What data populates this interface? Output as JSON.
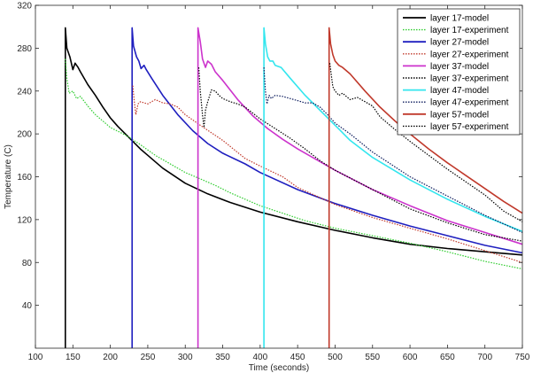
{
  "chart_data": {
    "type": "line",
    "title": "",
    "xlabel": "Time (seconds)",
    "ylabel": "Temperature (C)",
    "xlim": [
      100,
      750
    ],
    "ylim": [
      0,
      320
    ],
    "xticks": [
      100,
      150,
      200,
      250,
      300,
      350,
      400,
      450,
      500,
      550,
      600,
      650,
      700,
      750
    ],
    "yticks": [
      40,
      80,
      120,
      160,
      200,
      240,
      280,
      320
    ],
    "grid": false,
    "legend_position": "top-right",
    "series": [
      {
        "name": "layer 17-model",
        "color": "#000000",
        "style": "solid",
        "points": [
          [
            140,
            0
          ],
          [
            140,
            299
          ],
          [
            142,
            280
          ],
          [
            146,
            272
          ],
          [
            150,
            260
          ],
          [
            153,
            266
          ],
          [
            157,
            262
          ],
          [
            160,
            258
          ],
          [
            170,
            246
          ],
          [
            180,
            236
          ],
          [
            190,
            225
          ],
          [
            200,
            215
          ],
          [
            210,
            207
          ],
          [
            220,
            200
          ],
          [
            230,
            193
          ],
          [
            240,
            186
          ],
          [
            250,
            180
          ],
          [
            270,
            168
          ],
          [
            300,
            154
          ],
          [
            330,
            144
          ],
          [
            360,
            136
          ],
          [
            400,
            127
          ],
          [
            450,
            118
          ],
          [
            500,
            110
          ],
          [
            550,
            103
          ],
          [
            600,
            97
          ],
          [
            650,
            93
          ],
          [
            700,
            90
          ],
          [
            750,
            87
          ]
        ]
      },
      {
        "name": "layer 17-experiment",
        "color": "#2ecc2e",
        "style": "dotted",
        "points": [
          [
            140,
            270
          ],
          [
            142,
            252
          ],
          [
            145,
            238
          ],
          [
            150,
            240
          ],
          [
            155,
            233
          ],
          [
            160,
            235
          ],
          [
            170,
            226
          ],
          [
            180,
            218
          ],
          [
            190,
            212
          ],
          [
            200,
            206
          ],
          [
            220,
            199
          ],
          [
            240,
            190
          ],
          [
            260,
            180
          ],
          [
            280,
            172
          ],
          [
            300,
            164
          ],
          [
            320,
            158
          ],
          [
            340,
            152
          ],
          [
            360,
            145
          ],
          [
            380,
            139
          ],
          [
            400,
            133
          ],
          [
            430,
            126
          ],
          [
            460,
            119
          ],
          [
            500,
            112
          ],
          [
            550,
            105
          ],
          [
            600,
            98
          ],
          [
            650,
            90
          ],
          [
            700,
            81
          ],
          [
            750,
            74
          ]
        ]
      },
      {
        "name": "layer 27-model",
        "color": "#1f1fbf",
        "style": "solid",
        "points": [
          [
            229,
            0
          ],
          [
            229,
            299
          ],
          [
            231,
            282
          ],
          [
            235,
            272
          ],
          [
            238,
            268
          ],
          [
            241,
            261
          ],
          [
            245,
            264
          ],
          [
            248,
            260
          ],
          [
            255,
            252
          ],
          [
            270,
            236
          ],
          [
            290,
            218
          ],
          [
            310,
            203
          ],
          [
            330,
            191
          ],
          [
            350,
            182
          ],
          [
            380,
            172
          ],
          [
            400,
            164
          ],
          [
            450,
            148
          ],
          [
            500,
            135
          ],
          [
            550,
            124
          ],
          [
            600,
            114
          ],
          [
            650,
            105
          ],
          [
            700,
            96
          ],
          [
            750,
            89
          ]
        ]
      },
      {
        "name": "layer 27-experiment",
        "color": "#c0392b",
        "style": "dotted",
        "points": [
          [
            230,
            245
          ],
          [
            232,
            230
          ],
          [
            234,
            218
          ],
          [
            237,
            228
          ],
          [
            240,
            230
          ],
          [
            250,
            228
          ],
          [
            260,
            232
          ],
          [
            270,
            229
          ],
          [
            280,
            228
          ],
          [
            290,
            225
          ],
          [
            300,
            218
          ],
          [
            320,
            208
          ],
          [
            350,
            194
          ],
          [
            380,
            177
          ],
          [
            400,
            170
          ],
          [
            430,
            160
          ],
          [
            450,
            150
          ],
          [
            500,
            134
          ],
          [
            550,
            122
          ],
          [
            600,
            112
          ],
          [
            650,
            102
          ],
          [
            700,
            91
          ],
          [
            750,
            80
          ]
        ]
      },
      {
        "name": "layer 37-model",
        "color": "#cc33cc",
        "style": "solid",
        "points": [
          [
            317,
            0
          ],
          [
            317,
            299
          ],
          [
            320,
            286
          ],
          [
            323,
            270
          ],
          [
            327,
            262
          ],
          [
            330,
            268
          ],
          [
            335,
            265
          ],
          [
            340,
            258
          ],
          [
            350,
            250
          ],
          [
            370,
            232
          ],
          [
            390,
            217
          ],
          [
            410,
            205
          ],
          [
            430,
            195
          ],
          [
            450,
            186
          ],
          [
            500,
            166
          ],
          [
            550,
            148
          ],
          [
            600,
            133
          ],
          [
            650,
            119
          ],
          [
            700,
            108
          ],
          [
            750,
            97
          ]
        ]
      },
      {
        "name": "layer 37-experiment",
        "color": "#000000",
        "style": "dotted",
        "points": [
          [
            318,
            262
          ],
          [
            320,
            240
          ],
          [
            323,
            218
          ],
          [
            325,
            206
          ],
          [
            327,
            222
          ],
          [
            330,
            230
          ],
          [
            335,
            241
          ],
          [
            340,
            240
          ],
          [
            345,
            236
          ],
          [
            350,
            233
          ],
          [
            360,
            230
          ],
          [
            370,
            228
          ],
          [
            380,
            225
          ],
          [
            400,
            214
          ],
          [
            420,
            205
          ],
          [
            440,
            196
          ],
          [
            460,
            186
          ],
          [
            480,
            175
          ],
          [
            500,
            166
          ],
          [
            550,
            148
          ],
          [
            600,
            130
          ],
          [
            650,
            117
          ],
          [
            700,
            106
          ],
          [
            750,
            100
          ]
        ]
      },
      {
        "name": "layer 47-model",
        "color": "#33e6ee",
        "style": "solid",
        "points": [
          [
            405,
            0
          ],
          [
            405,
            299
          ],
          [
            407,
            284
          ],
          [
            410,
            272
          ],
          [
            413,
            268
          ],
          [
            417,
            268
          ],
          [
            420,
            264
          ],
          [
            428,
            262
          ],
          [
            440,
            252
          ],
          [
            460,
            236
          ],
          [
            480,
            222
          ],
          [
            500,
            208
          ],
          [
            520,
            194
          ],
          [
            550,
            178
          ],
          [
            600,
            157
          ],
          [
            650,
            139
          ],
          [
            700,
            123
          ],
          [
            750,
            109
          ]
        ]
      },
      {
        "name": "layer 47-experiment",
        "color": "#0a1a5c",
        "style": "dotted",
        "points": [
          [
            405,
            262
          ],
          [
            407,
            240
          ],
          [
            409,
            228
          ],
          [
            412,
            236
          ],
          [
            415,
            233
          ],
          [
            420,
            236
          ],
          [
            430,
            235
          ],
          [
            440,
            233
          ],
          [
            450,
            231
          ],
          [
            460,
            229
          ],
          [
            470,
            229
          ],
          [
            480,
            225
          ],
          [
            490,
            218
          ],
          [
            500,
            210
          ],
          [
            520,
            200
          ],
          [
            550,
            183
          ],
          [
            600,
            160
          ],
          [
            650,
            142
          ],
          [
            700,
            124
          ],
          [
            750,
            108
          ]
        ]
      },
      {
        "name": "layer 57-model",
        "color": "#c0392b",
        "style": "solid",
        "points": [
          [
            492,
            0
          ],
          [
            492,
            299
          ],
          [
            494,
            284
          ],
          [
            497,
            274
          ],
          [
            500,
            268
          ],
          [
            505,
            264
          ],
          [
            510,
            262
          ],
          [
            520,
            256
          ],
          [
            540,
            240
          ],
          [
            560,
            225
          ],
          [
            580,
            212
          ],
          [
            600,
            200
          ],
          [
            625,
            186
          ],
          [
            650,
            173
          ],
          [
            675,
            161
          ],
          [
            700,
            149
          ],
          [
            725,
            137
          ],
          [
            750,
            126
          ]
        ]
      },
      {
        "name": "layer 57-experiment",
        "color": "#000000",
        "style": "dotted",
        "points": [
          [
            493,
            266
          ],
          [
            495,
            255
          ],
          [
            497,
            244
          ],
          [
            500,
            240
          ],
          [
            505,
            236
          ],
          [
            510,
            238
          ],
          [
            520,
            232
          ],
          [
            530,
            234
          ],
          [
            540,
            230
          ],
          [
            550,
            226
          ],
          [
            560,
            216
          ],
          [
            580,
            204
          ],
          [
            600,
            193
          ],
          [
            625,
            180
          ],
          [
            650,
            167
          ],
          [
            675,
            155
          ],
          [
            700,
            143
          ],
          [
            725,
            128
          ],
          [
            750,
            118
          ]
        ]
      }
    ]
  }
}
